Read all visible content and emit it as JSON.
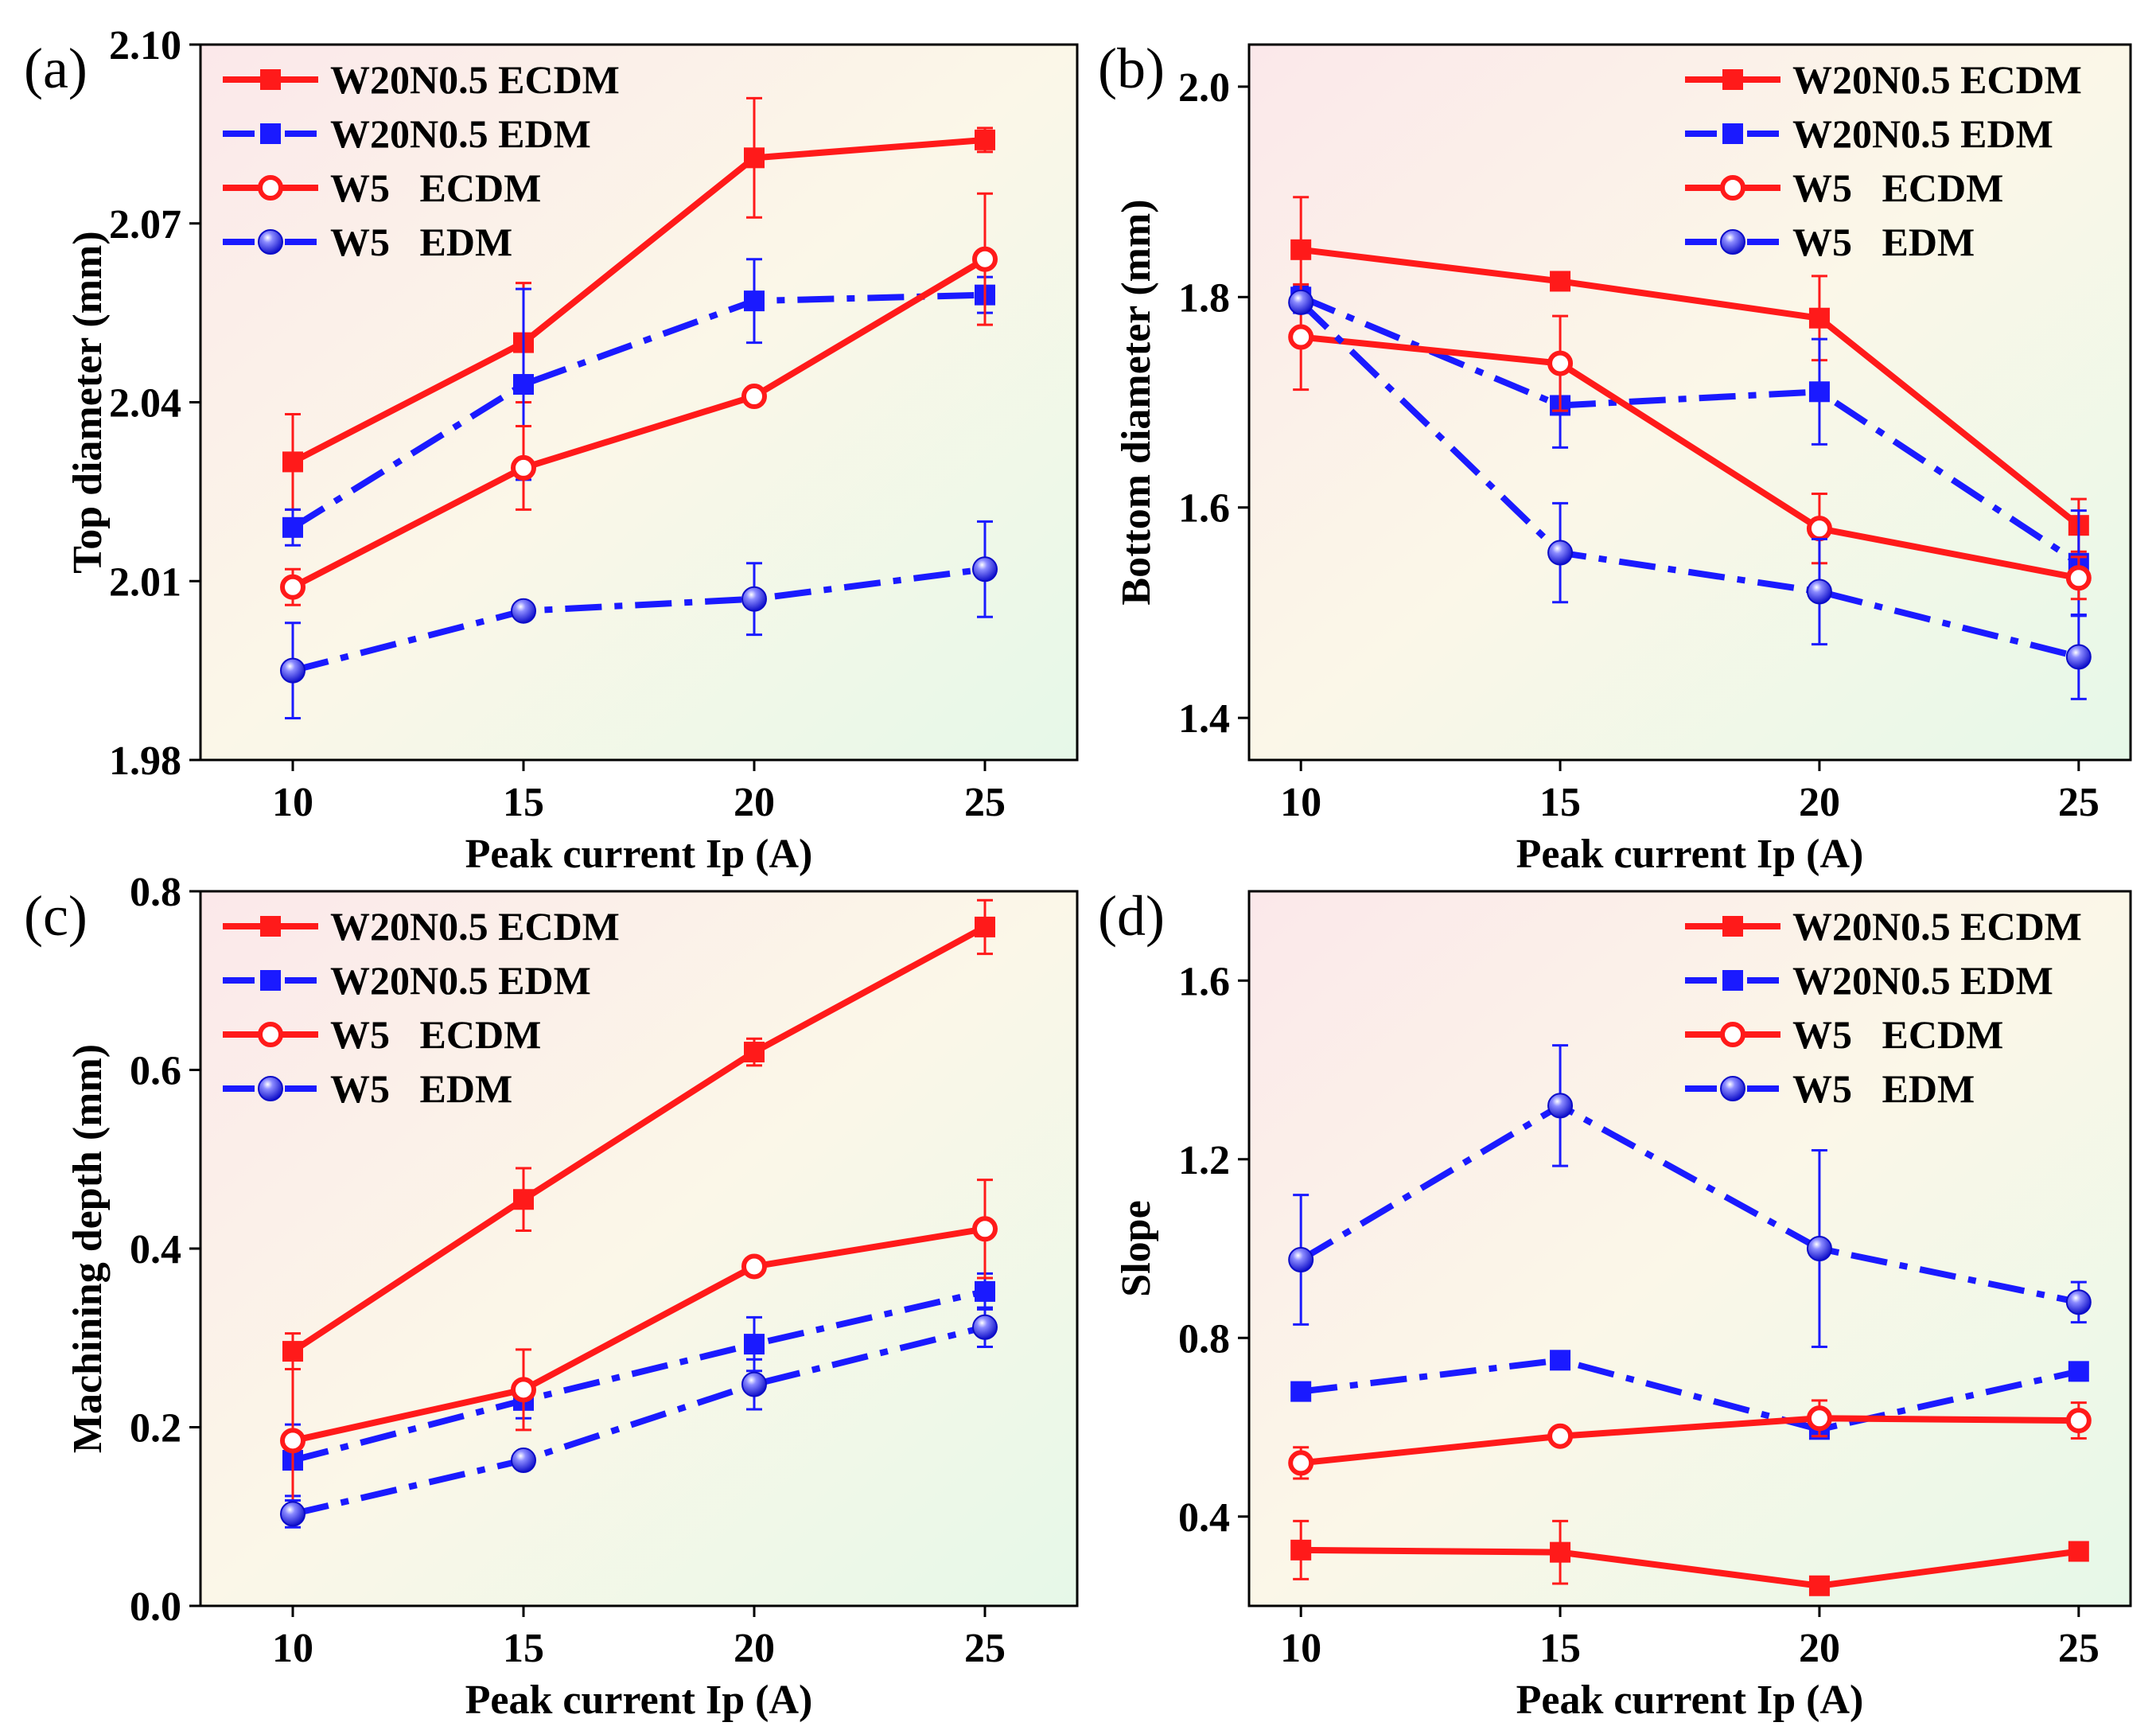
{
  "colors": {
    "red": "#ff1a1a",
    "blue": "#1a1aff",
    "frame": "#000000"
  },
  "chart_data": [
    {
      "type": "line",
      "panel_label": "(a)",
      "xlabel": "Peak current Ip (A)",
      "ylabel": "Top diameter (mm)",
      "x": [
        10,
        15,
        20,
        25
      ],
      "xticks": [
        10,
        15,
        20,
        25
      ],
      "xtick_labels": [
        "10",
        "15",
        "20",
        "25"
      ],
      "xlim": [
        8,
        27
      ],
      "ylim": [
        1.98,
        2.1
      ],
      "yticks": [
        1.98,
        2.01,
        2.04,
        2.07,
        2.1
      ],
      "ytick_labels": [
        "1.98",
        "2.01",
        "2.04",
        "2.07",
        "2.10"
      ],
      "legend_position": "top-left",
      "series": [
        {
          "name": "W20N0.5 ECDM",
          "color": "red",
          "dash": "solid",
          "marker": "square",
          "values": [
            2.03,
            2.05,
            2.081,
            2.084
          ],
          "errors": [
            0.008,
            0.01,
            0.01,
            0.002
          ]
        },
        {
          "name": "W20N0.5 EDM",
          "color": "blue",
          "dash": "dashdot",
          "marker": "square",
          "values": [
            2.019,
            2.043,
            2.057,
            2.058
          ],
          "errors": [
            0.003,
            0.016,
            0.007,
            0.003
          ]
        },
        {
          "name": "W5   ECDM",
          "color": "red",
          "dash": "solid",
          "marker": "circle",
          "values": [
            2.009,
            2.029,
            2.041,
            2.064
          ],
          "errors": [
            0.003,
            0.007,
            0.001,
            0.011
          ]
        },
        {
          "name": "W5   EDM",
          "color": "blue",
          "dash": "dashdot",
          "marker": "ball",
          "values": [
            1.995,
            2.005,
            2.007,
            2.012
          ],
          "errors": [
            0.008,
            0.001,
            0.006,
            0.008
          ]
        }
      ]
    },
    {
      "type": "line",
      "panel_label": "(b)",
      "xlabel": "Peak current Ip (A)",
      "ylabel": "Bottom diameter (mm)",
      "x": [
        10,
        15,
        20,
        25
      ],
      "xticks": [
        10,
        15,
        20,
        25
      ],
      "xtick_labels": [
        "10",
        "15",
        "20",
        "25"
      ],
      "xlim": [
        9,
        26
      ],
      "ylim": [
        1.36,
        2.04
      ],
      "yticks": [
        1.4,
        1.6,
        1.8,
        2.0
      ],
      "ytick_labels": [
        "1.4",
        "1.6",
        "1.8",
        "2.0"
      ],
      "legend_position": "top-right",
      "series": [
        {
          "name": "W20N0.5 ECDM",
          "color": "red",
          "dash": "solid",
          "marker": "square",
          "values": [
            1.845,
            1.815,
            1.78,
            1.583
          ],
          "errors": [
            0.05,
            0.005,
            0.04,
            0.025
          ]
        },
        {
          "name": "W20N0.5 EDM",
          "color": "blue",
          "dash": "dashdot",
          "marker": "square",
          "values": [
            1.8,
            1.697,
            1.71,
            1.547
          ],
          "errors": [
            0.01,
            0.04,
            0.05,
            0.05
          ]
        },
        {
          "name": "W5   ECDM",
          "color": "red",
          "dash": "solid",
          "marker": "circle",
          "values": [
            1.762,
            1.737,
            1.58,
            1.533
          ],
          "errors": [
            0.05,
            0.045,
            0.033,
            0.02
          ]
        },
        {
          "name": "W5   EDM",
          "color": "blue",
          "dash": "dashdot",
          "marker": "ball",
          "values": [
            1.795,
            1.557,
            1.52,
            1.458
          ],
          "errors": [
            0.01,
            0.047,
            0.05,
            0.04
          ]
        }
      ]
    },
    {
      "type": "line",
      "panel_label": "(c)",
      "xlabel": "Peak current Ip (A)",
      "ylabel": "Machining depth (mm)",
      "x": [
        10,
        15,
        20,
        25
      ],
      "xticks": [
        10,
        15,
        20,
        25
      ],
      "xtick_labels": [
        "10",
        "15",
        "20",
        "25"
      ],
      "xlim": [
        8,
        27
      ],
      "ylim": [
        0.0,
        0.8
      ],
      "yticks": [
        0.0,
        0.2,
        0.4,
        0.6,
        0.8
      ],
      "ytick_labels": [
        "0.0",
        "0.2",
        "0.4",
        "0.6",
        "0.8"
      ],
      "legend_position": "top-left",
      "series": [
        {
          "name": "W20N0.5 ECDM",
          "color": "red",
          "dash": "solid",
          "marker": "square",
          "values": [
            0.285,
            0.455,
            0.62,
            0.76
          ],
          "errors": [
            0.02,
            0.035,
            0.015,
            0.03
          ]
        },
        {
          "name": "W20N0.5 EDM",
          "color": "blue",
          "dash": "dashdot",
          "marker": "square",
          "values": [
            0.163,
            0.23,
            0.293,
            0.352
          ],
          "errors": [
            0.04,
            0.02,
            0.03,
            0.02
          ]
        },
        {
          "name": "W5   ECDM",
          "color": "red",
          "dash": "solid",
          "marker": "circle",
          "values": [
            0.185,
            0.242,
            0.38,
            0.422
          ],
          "errors": [
            0.08,
            0.045,
            0.005,
            0.055
          ]
        },
        {
          "name": "W5   EDM",
          "color": "blue",
          "dash": "dashdot",
          "marker": "ball",
          "values": [
            0.103,
            0.163,
            0.248,
            0.312
          ],
          "errors": [
            0.015,
            0.005,
            0.028,
            0.022
          ]
        }
      ]
    },
    {
      "type": "line",
      "panel_label": "(d)",
      "xlabel": "Peak current Ip (A)",
      "ylabel": "Slope",
      "x": [
        10,
        15,
        20,
        25
      ],
      "xticks": [
        10,
        15,
        20,
        25
      ],
      "xtick_labels": [
        "10",
        "15",
        "20",
        "25"
      ],
      "xlim": [
        9,
        26
      ],
      "ylim": [
        0.2,
        1.8
      ],
      "yticks": [
        0.4,
        0.8,
        1.2,
        1.6
      ],
      "ytick_labels": [
        "0.4",
        "0.8",
        "1.2",
        "1.6"
      ],
      "legend_position": "top-right",
      "series": [
        {
          "name": "W20N0.5 ECDM",
          "color": "red",
          "dash": "solid",
          "marker": "square",
          "values": [
            0.325,
            0.32,
            0.245,
            0.322
          ],
          "errors": [
            0.065,
            0.07,
            0.01,
            0.01
          ]
        },
        {
          "name": "W20N0.5 EDM",
          "color": "blue",
          "dash": "dashdot",
          "marker": "square",
          "values": [
            0.68,
            0.75,
            0.595,
            0.725
          ],
          "errors": [
            0.01,
            0.01,
            0.02,
            0.02
          ]
        },
        {
          "name": "W5   ECDM",
          "color": "red",
          "dash": "solid",
          "marker": "circle",
          "values": [
            0.52,
            0.58,
            0.62,
            0.615
          ],
          "errors": [
            0.035,
            0.01,
            0.04,
            0.04
          ]
        },
        {
          "name": "W5   EDM",
          "color": "blue",
          "dash": "dashdot",
          "marker": "ball",
          "values": [
            0.975,
            1.32,
            1.0,
            0.88
          ],
          "errors": [
            0.145,
            0.135,
            0.22,
            0.045
          ]
        }
      ]
    }
  ]
}
